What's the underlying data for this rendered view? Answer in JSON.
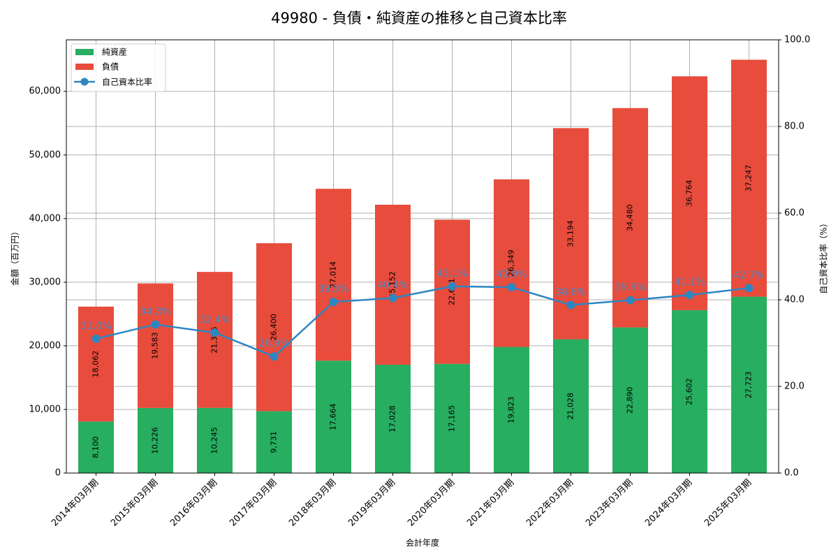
{
  "chart_data": {
    "type": "bar",
    "title": "49980 - 負債・純資産の推移と自己資本比率",
    "xlabel": "会計年度",
    "ylabel": "金額（百万円）",
    "y2label": "自己資本比率（%）",
    "ylim": [
      0,
      68100
    ],
    "y2lim": [
      0,
      100
    ],
    "yticks": [
      "0",
      "10,000",
      "20,000",
      "30,000",
      "40,000",
      "50,000",
      "60,000"
    ],
    "y2ticks": [
      "0.0",
      "20.0",
      "40.0",
      "60.0",
      "80.0",
      "100.0"
    ],
    "grid": true,
    "legend_position": "upper left",
    "stacked": true,
    "categories": [
      "2014年03月期",
      "2015年03月期",
      "2016年03月期",
      "2017年03月期",
      "2018年03月期",
      "2019年03月期",
      "2020年03月期",
      "2021年03月期",
      "2022年03月期",
      "2023年03月期",
      "2024年03月期",
      "2025年03月期"
    ],
    "series": [
      {
        "name": "純資産",
        "type": "bar",
        "color": "#27ae60",
        "values": [
          8100,
          10226,
          10245,
          9731,
          17664,
          17028,
          17165,
          19823,
          21028,
          22890,
          25602,
          27723
        ]
      },
      {
        "name": "負債",
        "type": "bar",
        "color": "#e74c3c",
        "values": [
          18062,
          19583,
          21375,
          26400,
          27014,
          25152,
          22661,
          26349,
          33194,
          34480,
          36764,
          37247
        ]
      },
      {
        "name": "自己資本比率",
        "type": "line",
        "axis": "right",
        "color": "#2e86c1",
        "values": [
          31.0,
          34.3,
          32.4,
          26.9,
          39.5,
          40.4,
          43.1,
          42.9,
          38.8,
          39.9,
          41.1,
          42.7
        ]
      }
    ]
  }
}
